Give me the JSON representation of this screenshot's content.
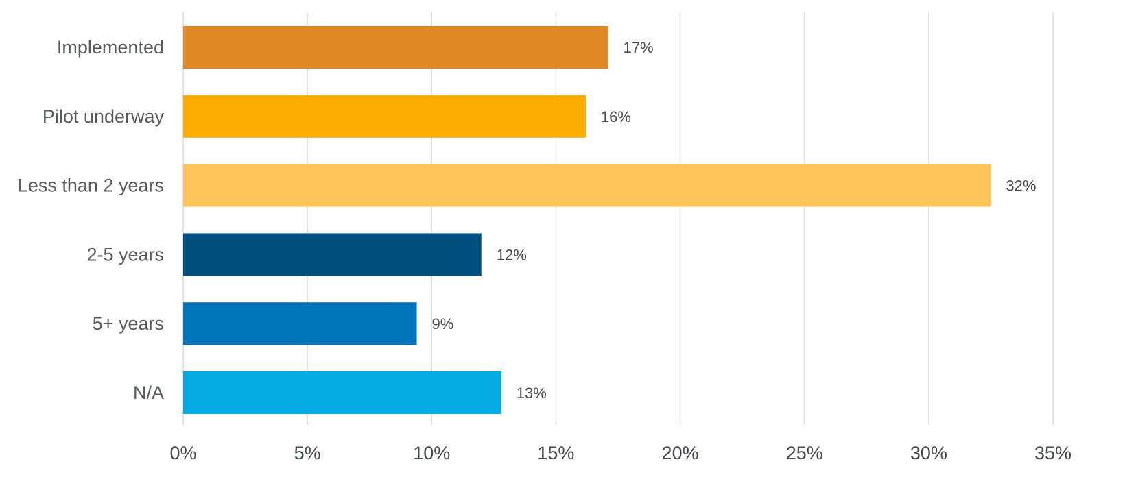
{
  "chart_data": {
    "type": "bar",
    "orientation": "horizontal",
    "title": "",
    "xlabel": "",
    "ylabel": "",
    "categories": [
      "Implemented",
      "Pilot underway",
      "Less than 2 years",
      "2-5 years",
      "5+ years",
      "N/A"
    ],
    "values": [
      17.1,
      16.2,
      32.5,
      12.0,
      9.4,
      12.8
    ],
    "data_labels": [
      "17%",
      "16%",
      "32%",
      "12%",
      "9%",
      "13%"
    ],
    "colors": [
      "#E08A27",
      "#FCAC00",
      "#FFC55A",
      "#004F7E",
      "#0074BA",
      "#05ACE3"
    ],
    "xlim": [
      0,
      35
    ],
    "xticks": [
      0,
      5,
      10,
      15,
      20,
      25,
      30,
      35
    ],
    "xtick_labels": [
      "0%",
      "5%",
      "10%",
      "15%",
      "20%",
      "25%",
      "30%",
      "35%"
    ],
    "grid": "vertical",
    "legend": "none"
  }
}
